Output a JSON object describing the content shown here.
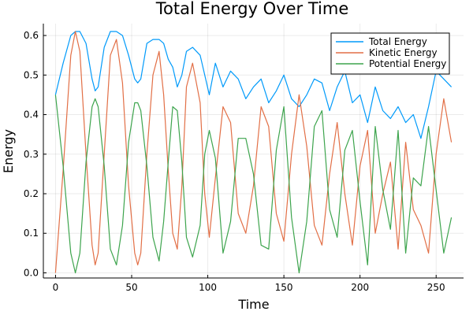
{
  "chart_data": {
    "type": "line",
    "title": "Total Energy Over Time",
    "xlabel": "Time",
    "ylabel": "Energy",
    "xlim": [
      -8,
      268
    ],
    "ylim": [
      -0.013,
      0.63
    ],
    "xticks": [
      0,
      50,
      100,
      150,
      200,
      250
    ],
    "yticks": [
      0.0,
      0.1,
      0.2,
      0.3,
      0.4,
      0.5,
      0.6
    ],
    "ytick_labels": [
      "0.0",
      "0.1",
      "0.2",
      "0.3",
      "0.4",
      "0.5",
      "0.6"
    ],
    "grid": true,
    "legend_position": "top-right",
    "x": [
      0,
      5,
      10,
      13,
      16,
      20,
      24,
      26,
      28,
      32,
      36,
      40,
      44,
      48,
      52,
      54,
      56,
      60,
      64,
      68,
      71,
      74,
      77,
      80,
      83,
      86,
      90,
      95,
      98,
      101,
      105,
      110,
      115,
      120,
      125,
      130,
      135,
      140,
      145,
      150,
      155,
      160,
      165,
      170,
      175,
      180,
      185,
      190,
      195,
      200,
      205,
      210,
      215,
      220,
      225,
      230,
      235,
      240,
      245,
      250,
      255,
      260
    ],
    "series": [
      {
        "name": "Total Energy",
        "color": "#009AFA",
        "values": [
          0.45,
          0.53,
          0.6,
          0.61,
          0.61,
          0.58,
          0.49,
          0.46,
          0.47,
          0.57,
          0.61,
          0.61,
          0.6,
          0.55,
          0.49,
          0.48,
          0.49,
          0.58,
          0.59,
          0.59,
          0.58,
          0.54,
          0.52,
          0.47,
          0.5,
          0.56,
          0.57,
          0.55,
          0.5,
          0.45,
          0.53,
          0.47,
          0.51,
          0.49,
          0.44,
          0.47,
          0.49,
          0.43,
          0.46,
          0.5,
          0.44,
          0.42,
          0.45,
          0.49,
          0.48,
          0.41,
          0.47,
          0.51,
          0.43,
          0.45,
          0.38,
          0.47,
          0.41,
          0.39,
          0.42,
          0.38,
          0.4,
          0.34,
          0.42,
          0.51,
          0.49,
          0.47
        ]
      },
      {
        "name": "Kinetic Energy",
        "color": "#E26F46",
        "values": [
          0.0,
          0.26,
          0.55,
          0.61,
          0.56,
          0.3,
          0.07,
          0.02,
          0.05,
          0.3,
          0.55,
          0.59,
          0.48,
          0.22,
          0.05,
          0.02,
          0.05,
          0.3,
          0.5,
          0.56,
          0.45,
          0.26,
          0.1,
          0.06,
          0.22,
          0.47,
          0.53,
          0.43,
          0.2,
          0.09,
          0.24,
          0.42,
          0.38,
          0.15,
          0.1,
          0.22,
          0.42,
          0.37,
          0.15,
          0.08,
          0.3,
          0.45,
          0.32,
          0.12,
          0.07,
          0.25,
          0.38,
          0.2,
          0.07,
          0.27,
          0.36,
          0.1,
          0.2,
          0.28,
          0.06,
          0.33,
          0.16,
          0.12,
          0.05,
          0.3,
          0.44,
          0.33
        ]
      },
      {
        "name": "Potential Energy",
        "color": "#3DA44D",
        "values": [
          0.45,
          0.27,
          0.05,
          0.0,
          0.05,
          0.28,
          0.42,
          0.44,
          0.42,
          0.27,
          0.06,
          0.02,
          0.12,
          0.33,
          0.43,
          0.43,
          0.41,
          0.27,
          0.09,
          0.03,
          0.13,
          0.28,
          0.42,
          0.41,
          0.28,
          0.09,
          0.04,
          0.12,
          0.3,
          0.36,
          0.29,
          0.05,
          0.13,
          0.34,
          0.34,
          0.25,
          0.07,
          0.06,
          0.31,
          0.42,
          0.14,
          0.0,
          0.13,
          0.37,
          0.41,
          0.16,
          0.09,
          0.31,
          0.36,
          0.18,
          0.02,
          0.37,
          0.21,
          0.11,
          0.36,
          0.05,
          0.24,
          0.22,
          0.37,
          0.21,
          0.05,
          0.14
        ]
      }
    ]
  }
}
